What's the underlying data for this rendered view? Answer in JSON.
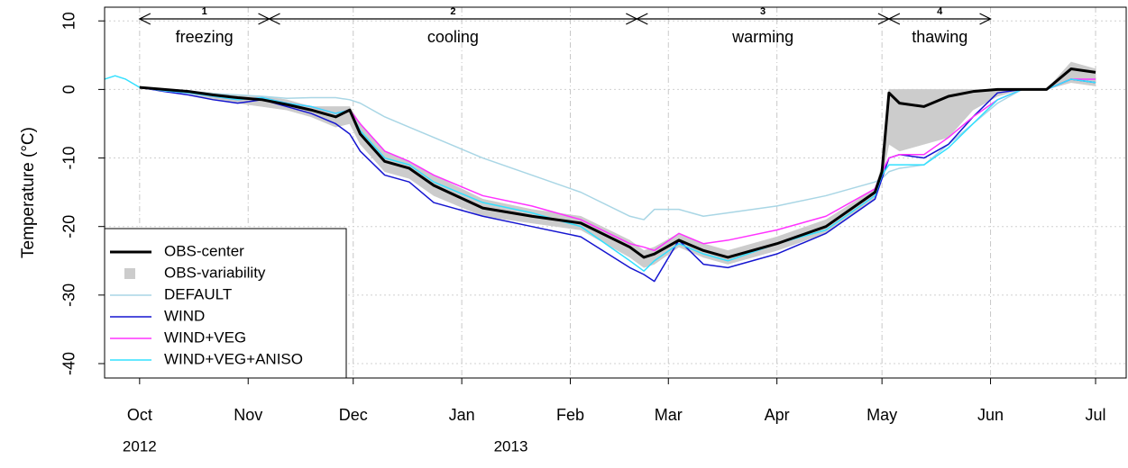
{
  "chart_data": {
    "type": "line",
    "y_label": "Temperature (°C)",
    "x": [
      -10,
      -7,
      -4,
      0,
      7,
      14,
      21,
      28,
      35,
      42,
      49,
      56,
      60,
      63,
      70,
      77,
      84,
      98,
      112,
      126,
      140,
      144,
      147,
      154,
      161,
      168,
      182,
      196,
      210,
      212,
      214,
      217,
      224,
      231,
      238,
      245,
      252,
      259,
      266,
      273
    ],
    "xlim": [
      -10,
      282
    ],
    "xticks": [
      {
        "value": 0,
        "label": "Oct"
      },
      {
        "value": 31,
        "label": "Nov"
      },
      {
        "value": 61,
        "label": "Dec"
      },
      {
        "value": 92,
        "label": "Jan"
      },
      {
        "value": 123,
        "label": "Feb"
      },
      {
        "value": 151,
        "label": "Mar"
      },
      {
        "value": 182,
        "label": "Apr"
      },
      {
        "value": 212,
        "label": "May"
      },
      {
        "value": 243,
        "label": "Jun"
      },
      {
        "value": 273,
        "label": "Jul"
      }
    ],
    "year_labels": [
      {
        "text": "2012",
        "x": 0
      },
      {
        "text": "2013",
        "x": 106
      }
    ],
    "ylim": [
      -42.1,
      12
    ],
    "yticks": [
      -40,
      -30,
      -20,
      -10,
      0,
      10
    ],
    "grid": true,
    "legend": "lower left",
    "periods": [
      {
        "number": 1,
        "label": "freezing",
        "start": 0,
        "end": 37
      },
      {
        "number": 2,
        "label": "cooling",
        "start": 37,
        "end": 142
      },
      {
        "number": 3,
        "label": "warming",
        "start": 142,
        "end": 214
      },
      {
        "number": 4,
        "label": "thawing",
        "start": 214,
        "end": 243
      }
    ],
    "series": [
      {
        "name": "OBS-center",
        "color": "#000000",
        "width": 3,
        "values": [
          null,
          null,
          null,
          0.3,
          0,
          -0.3,
          -0.8,
          -1.2,
          -1.5,
          -2.2,
          -3,
          -4,
          -3,
          -6.5,
          -10.5,
          -11.5,
          -14,
          -17.3,
          -18.5,
          -19.5,
          -23,
          -24.5,
          -24,
          -22,
          -23.5,
          -24.5,
          -22.5,
          -20,
          -15,
          -12,
          -0.5,
          -2,
          -2.5,
          -1,
          -0.3,
          0,
          0,
          0,
          3,
          2.5
        ]
      },
      {
        "name": "OBS-variability",
        "color": "#cccccc",
        "band": true,
        "low": [
          null,
          null,
          null,
          0.3,
          -0.3,
          -0.6,
          -1.5,
          -2,
          -2.5,
          -3,
          -4,
          -5.5,
          -5,
          -8,
          -12,
          -13,
          -15.5,
          -18.5,
          -19.5,
          -20.5,
          -24.5,
          -26,
          -25.5,
          -23,
          -24.5,
          -25.5,
          -23.5,
          -21,
          -16,
          -13,
          -8,
          -9,
          -8,
          -7,
          -3,
          -1,
          0,
          0,
          1,
          0.5
        ],
        "high": [
          null,
          null,
          null,
          0.3,
          0,
          -0.2,
          -0.5,
          -0.8,
          -1,
          -1.5,
          -2.5,
          -2.5,
          -2.5,
          -5,
          -9,
          -10.5,
          -12.5,
          -16,
          -17.5,
          -18.5,
          -22,
          -23.5,
          -23,
          -21,
          -22.5,
          -23.5,
          -21.5,
          -19,
          -14.5,
          -11,
          0,
          0,
          0,
          0,
          0,
          0,
          0,
          0,
          4,
          3
        ]
      },
      {
        "name": "DEFAULT",
        "color": "#a9d6e5",
        "width": 1.5,
        "values": [
          null,
          null,
          null,
          0.3,
          0,
          -0.3,
          -0.6,
          -0.8,
          -1,
          -1.3,
          -1.2,
          -1.2,
          -1.5,
          -2,
          -4,
          -5.5,
          -7,
          -10,
          -12.5,
          -15,
          -18.5,
          -19,
          -17.5,
          -17.5,
          -18.5,
          -18,
          -17,
          -15.5,
          -13.5,
          -13,
          -12,
          -11.5,
          -11,
          -8,
          -5,
          -2,
          0,
          0,
          1.5,
          1.5
        ]
      },
      {
        "name": "WIND",
        "color": "#1515d0",
        "width": 1.5,
        "values": [
          null,
          null,
          null,
          0.3,
          -0.3,
          -0.8,
          -1.5,
          -2,
          -1.5,
          -2.5,
          -3.5,
          -5,
          -6.5,
          -9,
          -12.5,
          -13.5,
          -16.5,
          -18.5,
          -20,
          -21.5,
          -26,
          -27,
          -28,
          -22,
          -25.5,
          -26,
          -24,
          -21,
          -16,
          -13,
          -10,
          -9.5,
          -10,
          -8,
          -4,
          -0.5,
          0,
          0,
          1.5,
          1
        ]
      },
      {
        "name": "WIND+VEG",
        "color": "#ff33ff",
        "width": 1.5,
        "values": [
          null,
          null,
          null,
          0.3,
          -0.2,
          -0.5,
          -1,
          -1.5,
          -1.2,
          -2,
          -2.5,
          -3.5,
          -3,
          -5,
          -9,
          -10.5,
          -12.5,
          -15.5,
          -17,
          -19,
          -22.5,
          -23,
          -23.5,
          -21,
          -22.5,
          -22,
          -20.5,
          -18.5,
          -14.5,
          -12,
          -10,
          -9.5,
          -9.5,
          -7,
          -4,
          -1.5,
          0,
          0,
          1.5,
          1.5
        ]
      },
      {
        "name": "WIND+VEG+ANISO",
        "color": "#33e0ff",
        "width": 1.5,
        "values": [
          1.5,
          2,
          1.5,
          0.3,
          -0.2,
          -0.5,
          -1,
          -1.5,
          -1.2,
          -2,
          -2.5,
          -3.5,
          -3,
          -6,
          -10,
          -11,
          -13.5,
          -16.5,
          -18,
          -20,
          -25,
          -26.5,
          -25,
          -22.5,
          -24,
          -25,
          -22.5,
          -20.5,
          -15.5,
          -12.5,
          -11,
          -11,
          -11,
          -8.5,
          -5,
          -1.5,
          0,
          0,
          1.5,
          1
        ]
      }
    ]
  }
}
